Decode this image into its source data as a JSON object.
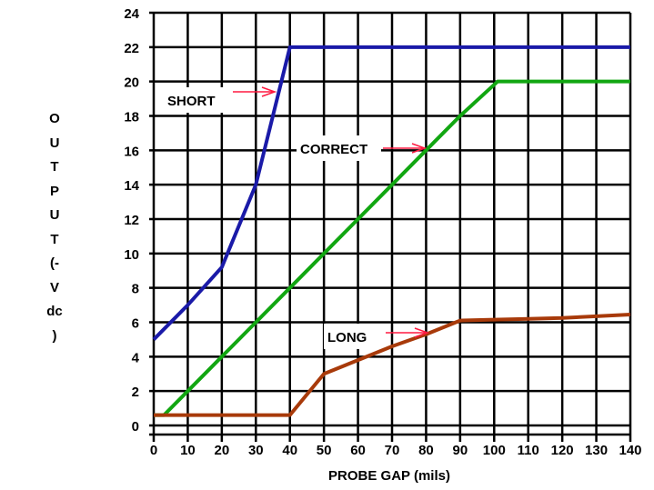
{
  "chart_data": {
    "type": "line",
    "title": "",
    "xlabel": "PROBE GAP (mils)",
    "ylabel_lines": [
      "O",
      "U",
      "T",
      "P",
      "U",
      "T",
      "(-",
      "V",
      "dc",
      ")"
    ],
    "xlim": [
      0,
      140
    ],
    "ylim": [
      0,
      24
    ],
    "grid": true,
    "x_ticks": [
      "0",
      "10",
      "20",
      "30",
      "40",
      "50",
      "60",
      "70",
      "80",
      "90",
      "100",
      "110",
      "120",
      "130",
      "140"
    ],
    "y_ticks": [
      "0",
      "2",
      "4",
      "6",
      "8",
      "10",
      "12",
      "14",
      "16",
      "18",
      "20",
      "22",
      "24"
    ],
    "series": [
      {
        "name": "SHORT",
        "color": "#1a1aa8",
        "x": [
          0,
          10,
          20,
          30,
          40,
          140
        ],
        "y": [
          5,
          7,
          9.2,
          14,
          22,
          22
        ]
      },
      {
        "name": "CORRECT",
        "color": "#11a611",
        "x": [
          0,
          3,
          10,
          20,
          30,
          40,
          50,
          60,
          70,
          80,
          90,
          101,
          140
        ],
        "y": [
          0.6,
          0.6,
          2,
          4,
          6,
          8,
          10,
          12,
          14,
          16,
          18,
          20,
          20
        ]
      },
      {
        "name": "LONG",
        "color": "#a83a0a",
        "x": [
          0,
          40,
          50,
          60,
          70,
          80,
          90,
          100,
          110,
          120,
          130,
          140
        ],
        "y": [
          0.6,
          0.6,
          3,
          3.8,
          4.6,
          5.3,
          6.1,
          6.15,
          6.2,
          6.25,
          6.35,
          6.45
        ]
      }
    ],
    "annotations": [
      {
        "text": "SHORT",
        "arrow_color": "#ff1a40"
      },
      {
        "text": "CORRECT",
        "arrow_color": "#ff1a40"
      },
      {
        "text": "LONG",
        "arrow_color": "#ff1a40"
      }
    ]
  }
}
